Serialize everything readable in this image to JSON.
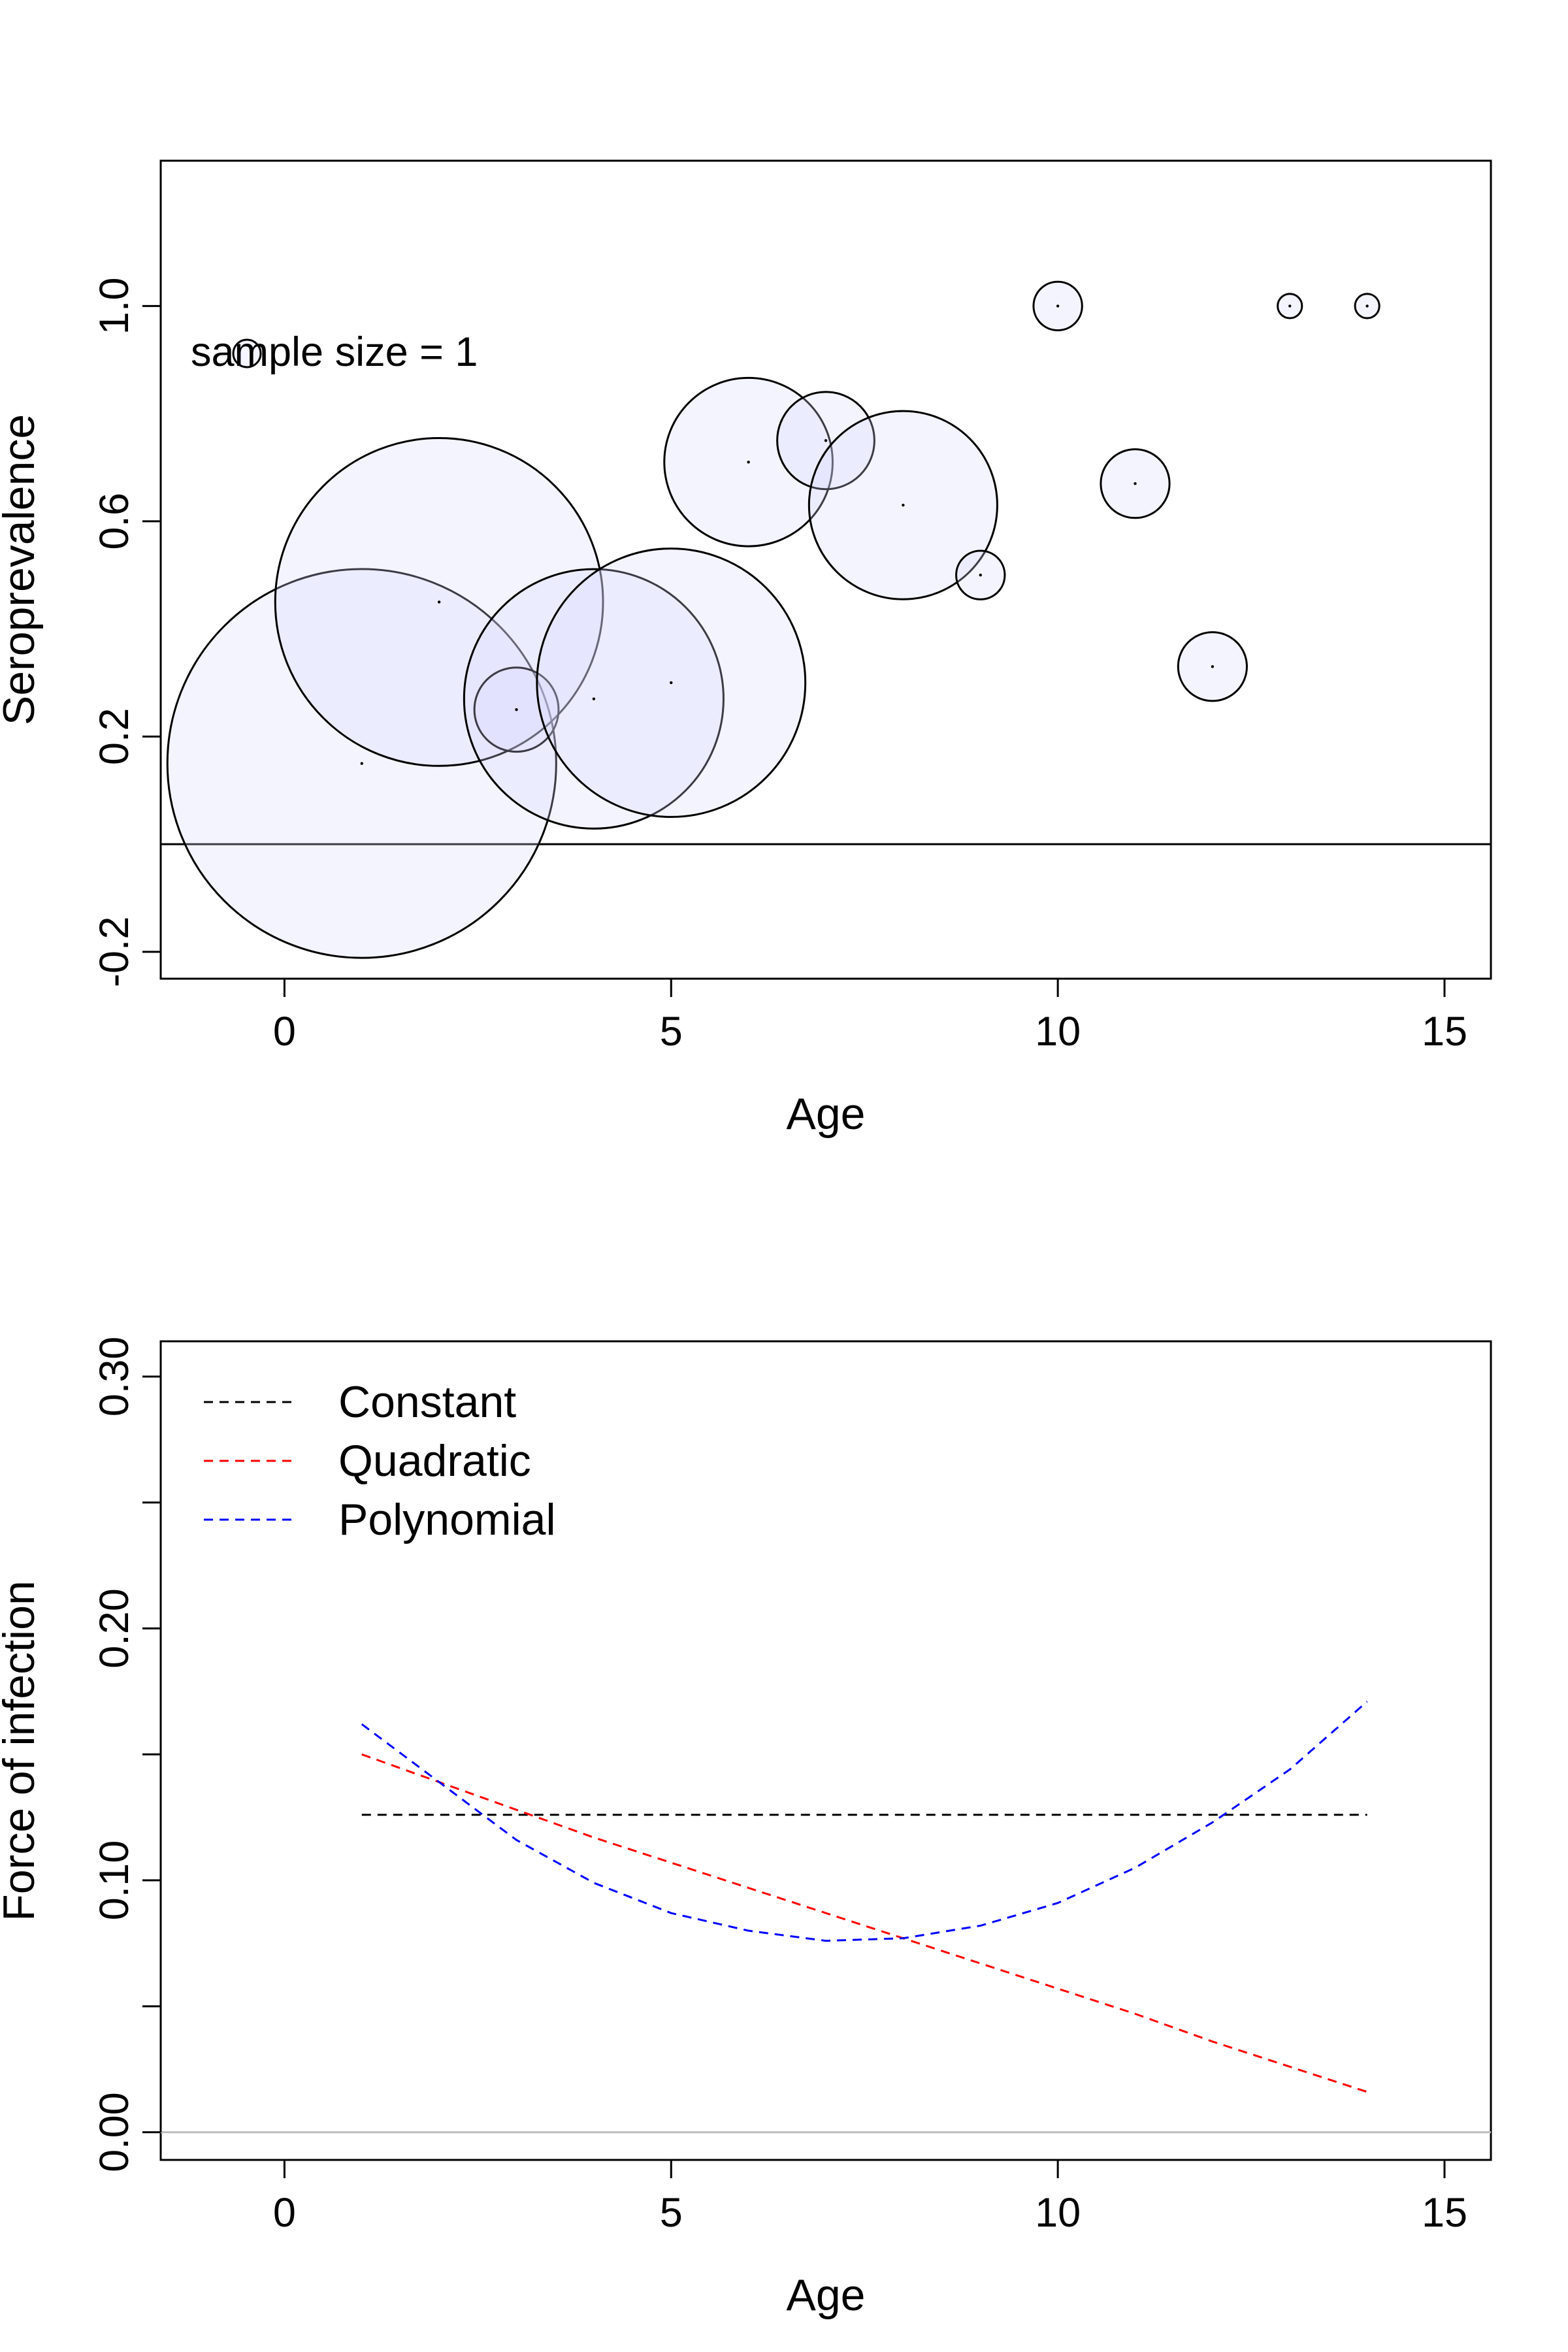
{
  "chart_data": [
    {
      "type": "scatter",
      "marker": "bubble",
      "xlabel": "Age",
      "ylabel": "Seroprevalence",
      "xlim": [
        -1.6,
        15.6
      ],
      "ylim": [
        -0.25,
        1.27
      ],
      "xticks": [
        0,
        5,
        10,
        15
      ],
      "yticks": [
        -0.2,
        0.2,
        0.6,
        1.0
      ],
      "xtick_labels": [
        "0",
        "5",
        "10",
        "15"
      ],
      "ytick_labels": [
        "-0.2",
        "0.2",
        "0.6",
        "1.0"
      ],
      "hline": 0,
      "annotation": "sample size = 1",
      "bubble_fill": "#d6d8ff",
      "bubble_stroke": "#000000",
      "points": [
        {
          "age": 1,
          "seroprevalence": 0.15,
          "sample_size": 128
        },
        {
          "age": 2,
          "seroprevalence": 0.45,
          "sample_size": 91
        },
        {
          "age": 3,
          "seroprevalence": 0.25,
          "sample_size": 6
        },
        {
          "age": 4,
          "seroprevalence": 0.27,
          "sample_size": 57
        },
        {
          "age": 5,
          "seroprevalence": 0.3,
          "sample_size": 61
        },
        {
          "age": 6,
          "seroprevalence": 0.71,
          "sample_size": 24
        },
        {
          "age": 7,
          "seroprevalence": 0.75,
          "sample_size": 8
        },
        {
          "age": 8,
          "seroprevalence": 0.63,
          "sample_size": 30
        },
        {
          "age": 9,
          "seroprevalence": 0.5,
          "sample_size": 2
        },
        {
          "age": 10,
          "seroprevalence": 1.0,
          "sample_size": 2
        },
        {
          "age": 11,
          "seroprevalence": 0.67,
          "sample_size": 4
        },
        {
          "age": 12,
          "seroprevalence": 0.33,
          "sample_size": 4
        },
        {
          "age": 13,
          "seroprevalence": 1.0,
          "sample_size": 0.5
        },
        {
          "age": 14,
          "seroprevalence": 1.0,
          "sample_size": 0.5
        }
      ]
    },
    {
      "type": "line",
      "xlabel": "Age",
      "ylabel": "Force of infection",
      "xlim": [
        -1.6,
        15.6
      ],
      "ylim": [
        -0.011,
        0.314
      ],
      "xticks": [
        0,
        5,
        10,
        15
      ],
      "yticks": [
        0.0,
        0.05,
        0.1,
        0.15,
        0.2,
        0.25,
        0.3
      ],
      "xtick_labels": [
        "0",
        "5",
        "10",
        "15"
      ],
      "ytick_labels": [
        "0.00",
        "0.10",
        "0.20",
        "0.30"
      ],
      "ytick_labeled_values": [
        0.0,
        0.1,
        0.2,
        0.3
      ],
      "hline": 0,
      "hline_color": "#bebebe",
      "legend_position": "top-left",
      "x": [
        1,
        2,
        3,
        4,
        5,
        6,
        7,
        8,
        9,
        10,
        11,
        12,
        13,
        14
      ],
      "series": [
        {
          "name": "Constant",
          "color": "#000000",
          "dash": "dashed",
          "values": [
            0.126,
            0.126,
            0.126,
            0.126,
            0.126,
            0.126,
            0.126,
            0.126,
            0.126,
            0.126,
            0.126,
            0.126,
            0.126,
            0.126
          ]
        },
        {
          "name": "Quadratic",
          "color": "#ff0000",
          "dash": "dashed",
          "values": [
            0.15,
            0.139,
            0.128,
            0.117,
            0.107,
            0.097,
            0.087,
            0.077,
            0.067,
            0.057,
            0.047,
            0.036,
            0.026,
            0.016
          ]
        },
        {
          "name": "Polynomial",
          "color": "#0000ff",
          "dash": "dashed",
          "values": [
            0.162,
            0.139,
            0.116,
            0.099,
            0.087,
            0.08,
            0.076,
            0.077,
            0.082,
            0.091,
            0.105,
            0.123,
            0.144,
            0.171
          ]
        }
      ]
    }
  ]
}
